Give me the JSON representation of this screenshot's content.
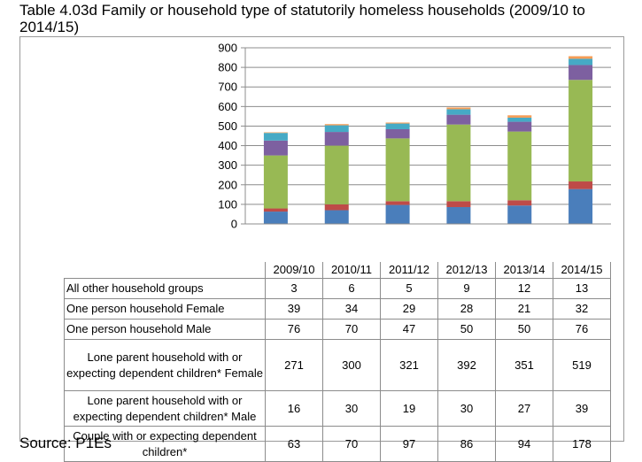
{
  "page": {
    "title": "Table 4.03d Family or household type of statutorily homeless households (2009/10 to 2014/15)",
    "source": "Source: P1Es"
  },
  "chart_data": {
    "type": "bar",
    "stacked": true,
    "title": "",
    "xlabel": "",
    "ylabel": "",
    "ylim": [
      0,
      900
    ],
    "yticks": [
      0,
      100,
      200,
      300,
      400,
      500,
      600,
      700,
      800,
      900
    ],
    "grid": true,
    "legend": "data table below chart",
    "categories": [
      "2009/10",
      "2010/11",
      "2011/12",
      "2012/13",
      "2013/14",
      "2014/15"
    ],
    "series": [
      {
        "name": "Couple with or expecting dependent children*",
        "color": "#4a7ebb",
        "values": [
          63,
          70,
          97,
          86,
          94,
          178
        ]
      },
      {
        "name": "Lone parent household with or expecting  dependent children* Male",
        "color": "#be4b48",
        "values": [
          16,
          30,
          19,
          30,
          27,
          39
        ]
      },
      {
        "name": "Lone parent household with or expecting  dependent children* Female",
        "color": "#98b954",
        "values": [
          271,
          300,
          321,
          392,
          351,
          519
        ]
      },
      {
        "name": "One person household Male",
        "color": "#7d60a0",
        "values": [
          76,
          70,
          47,
          50,
          50,
          76
        ]
      },
      {
        "name": "One person household Female",
        "color": "#46aac5",
        "values": [
          39,
          34,
          29,
          28,
          21,
          32
        ]
      },
      {
        "name": "All other household groups",
        "color": "#f59d56",
        "values": [
          3,
          6,
          5,
          9,
          12,
          13
        ]
      }
    ]
  }
}
